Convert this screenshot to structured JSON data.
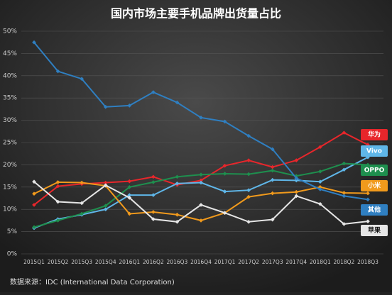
{
  "chart_data": {
    "type": "line",
    "title": "国内市场主要手机品牌出货量占比",
    "source": "数据来源：IDC (International Data Corporation)",
    "categories": [
      "2015Q1",
      "2015Q2",
      "2015Q3",
      "2015Q4",
      "2016Q1",
      "2016Q2",
      "2016Q3",
      "2016Q4",
      "2017Q1",
      "2017Q2",
      "2017Q3",
      "2017Q4",
      "2018Q1",
      "2018Q2",
      "2018Q3"
    ],
    "ylim": [
      0,
      50
    ],
    "yticks": [
      {
        "value": 0,
        "label": "0%"
      },
      {
        "value": 5,
        "label": "5%"
      },
      {
        "value": 10,
        "label": "10%"
      },
      {
        "value": 15,
        "label": "15%"
      },
      {
        "value": 20,
        "label": "20%"
      },
      {
        "value": 25,
        "label": "25%"
      },
      {
        "value": 30,
        "label": "30%"
      },
      {
        "value": 35,
        "label": "35%"
      },
      {
        "value": 40,
        "label": "40%"
      },
      {
        "value": 45,
        "label": "45%"
      },
      {
        "value": 50,
        "label": "50%"
      }
    ],
    "grid": true,
    "series": [
      {
        "name": "华为",
        "color": "#e8262b",
        "values": [
          11,
          15.2,
          15.7,
          16,
          16.3,
          17.3,
          15.5,
          16.5,
          19.8,
          21,
          19.5,
          21,
          24,
          27.2,
          24.5
        ]
      },
      {
        "name": "Vivo",
        "color": "#5fb6e8",
        "values": [
          5.8,
          7.8,
          8.8,
          10,
          13.2,
          13.2,
          15.8,
          16,
          14,
          14.3,
          16.6,
          16.5,
          16.2,
          18.9,
          21.7
        ]
      },
      {
        "name": "OPPO",
        "color": "#1e8f4e",
        "values": [
          6,
          7.5,
          9,
          10.8,
          15,
          16.1,
          17.3,
          17.8,
          18,
          17.9,
          18.7,
          17.5,
          18.5,
          20.3,
          20
        ]
      },
      {
        "name": "小米",
        "color": "#f19a1c",
        "values": [
          13.5,
          16.1,
          16,
          15.3,
          9,
          9.4,
          8.8,
          7.5,
          9.2,
          12.8,
          13.6,
          13.9,
          15,
          13.7,
          13.6
        ]
      },
      {
        "name": "其他",
        "color": "#2f7fc1",
        "values": [
          47.5,
          41,
          39.3,
          33,
          33.3,
          36.3,
          34,
          30.6,
          29.7,
          26.5,
          23.5,
          17,
          14.5,
          13,
          12.2
        ]
      },
      {
        "name": "苹果",
        "color": "#e6e6e6",
        "values": [
          16.2,
          11.7,
          11.4,
          15.4,
          12.6,
          7.8,
          7.2,
          11,
          9.2,
          7.2,
          7.7,
          13,
          11.2,
          6.7,
          7.3
        ]
      }
    ]
  }
}
